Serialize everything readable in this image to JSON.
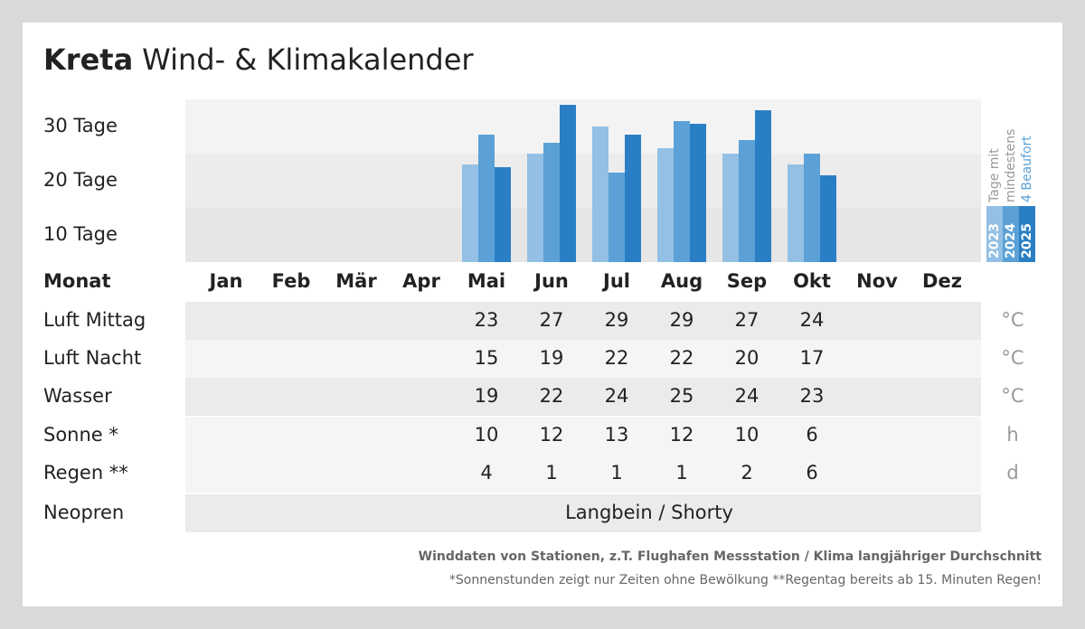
{
  "title": [
    "Kreta",
    "Wind- & Klimakalender"
  ],
  "chart_data": {
    "type": "bar",
    "categories": [
      "Jan",
      "Feb",
      "Mär",
      "Apr",
      "Mai",
      "Jun",
      "Jul",
      "Aug",
      "Sep",
      "Okt",
      "Nov",
      "Dez"
    ],
    "series": [
      {
        "name": "2023",
        "color": "#93c0e4",
        "values": [
          null,
          null,
          null,
          null,
          18,
          20,
          25,
          21,
          20,
          18,
          null,
          null
        ]
      },
      {
        "name": "2024",
        "color": "#5ba1d7",
        "values": [
          null,
          null,
          null,
          null,
          23.5,
          22,
          16.5,
          26,
          22.5,
          20,
          null,
          null
        ]
      },
      {
        "name": "2025",
        "color": "#2a7fc4",
        "values": [
          null,
          null,
          null,
          null,
          17.5,
          29,
          23.5,
          25.5,
          28,
          16,
          null,
          null
        ]
      }
    ],
    "ylim": [
      0,
      30
    ],
    "yticks": [
      {
        "value": 10,
        "label": "10 Tage"
      },
      {
        "value": 20,
        "label": "20 Tage"
      },
      {
        "value": 30,
        "label": "30 Tage"
      }
    ],
    "legend_title": [
      "Tage mit",
      "mindestens",
      "4 Beaufort"
    ]
  },
  "table": {
    "header": "Monat",
    "rows": [
      {
        "label": "Luft Mittag",
        "values": [
          null,
          null,
          null,
          null,
          23,
          27,
          29,
          29,
          27,
          24,
          null,
          null
        ],
        "unit": "°C"
      },
      {
        "label": "Luft Nacht",
        "values": [
          null,
          null,
          null,
          null,
          15,
          19,
          22,
          22,
          20,
          17,
          null,
          null
        ],
        "unit": "°C"
      },
      {
        "label": "Wasser",
        "values": [
          null,
          null,
          null,
          null,
          19,
          22,
          24,
          25,
          24,
          23,
          null,
          null
        ],
        "unit": "°C"
      },
      {
        "label": "Sonne *",
        "values": [
          null,
          null,
          null,
          null,
          10,
          12,
          13,
          12,
          10,
          6,
          null,
          null
        ],
        "unit": "h"
      },
      {
        "label": "Regen **",
        "values": [
          null,
          null,
          null,
          null,
          4,
          1,
          1,
          1,
          2,
          6,
          null,
          null
        ],
        "unit": "d"
      },
      {
        "label": "Neopren",
        "text": "Langbein / Shorty"
      }
    ]
  },
  "footnotes": [
    "Winddaten von Stationen, z.T. Flughafen Messstation / Klima langjähriger Durchschnitt",
    "*Sonnenstunden zeigt nur Zeiten ohne Bewölkung  **Regentag bereits ab 15. Minuten Regen!"
  ]
}
